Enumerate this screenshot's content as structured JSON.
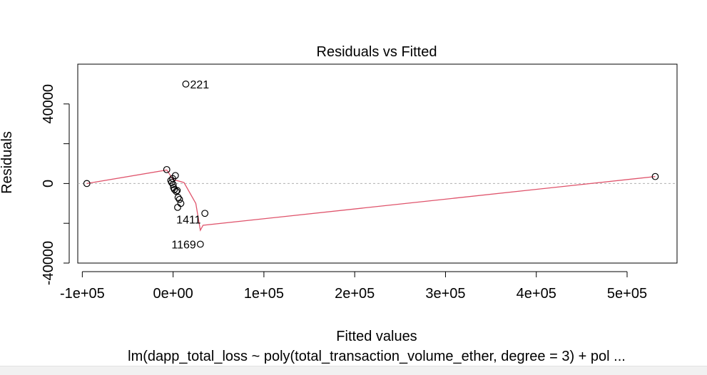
{
  "chart_data": {
    "type": "scatter",
    "title": "Residuals vs Fitted",
    "xlabel": "Fitted values",
    "ylabel": "Residuals",
    "subtitle": "lm(dapp_total_loss ~ poly(total_transaction_volume_ether, degree = 3) + pol ...",
    "xlim": [
      -105000,
      555000
    ],
    "ylim": [
      -40000,
      60000
    ],
    "x_ticks": [
      -100000,
      0,
      100000,
      200000,
      300000,
      400000,
      500000
    ],
    "x_tick_labels": [
      "-1e+05",
      "0e+00",
      "1e+05",
      "2e+05",
      "3e+05",
      "4e+05",
      "5e+05"
    ],
    "y_ticks": [
      -40000,
      -20000,
      0,
      20000,
      40000
    ],
    "y_tick_labels": [
      "-40000",
      "",
      "0",
      "",
      "40000"
    ],
    "zero_line": 0,
    "points": [
      {
        "x": -95000,
        "y": 0
      },
      {
        "x": -7000,
        "y": 7000
      },
      {
        "x": -2500,
        "y": 1500
      },
      {
        "x": -1500,
        "y": 500
      },
      {
        "x": -500,
        "y": 2500
      },
      {
        "x": 0,
        "y": -500
      },
      {
        "x": 500,
        "y": -2000
      },
      {
        "x": 1500,
        "y": -3000
      },
      {
        "x": 2500,
        "y": 4000
      },
      {
        "x": 3500,
        "y": -4000
      },
      {
        "x": 4500,
        "y": -3500
      },
      {
        "x": 5500,
        "y": -7000
      },
      {
        "x": 7000,
        "y": -8000
      },
      {
        "x": 8500,
        "y": -10000
      },
      {
        "x": 5000,
        "y": -12000
      },
      {
        "x": 14000,
        "y": 50000,
        "label": "221"
      },
      {
        "x": 35000,
        "y": -15000,
        "label": "1411"
      },
      {
        "x": 30000,
        "y": -30500,
        "label": "1169"
      },
      {
        "x": 531000,
        "y": 3500
      }
    ],
    "smooth_line": [
      [
        -95000,
        0
      ],
      [
        -7000,
        6800
      ],
      [
        0,
        2000
      ],
      [
        12000,
        500
      ],
      [
        25000,
        -10000
      ],
      [
        30000,
        -23500
      ],
      [
        33000,
        -21000
      ],
      [
        531000,
        3500
      ]
    ],
    "colors": {
      "points": "#000000",
      "smooth": "#df536b",
      "zero_line": "#b0b0b0"
    }
  }
}
